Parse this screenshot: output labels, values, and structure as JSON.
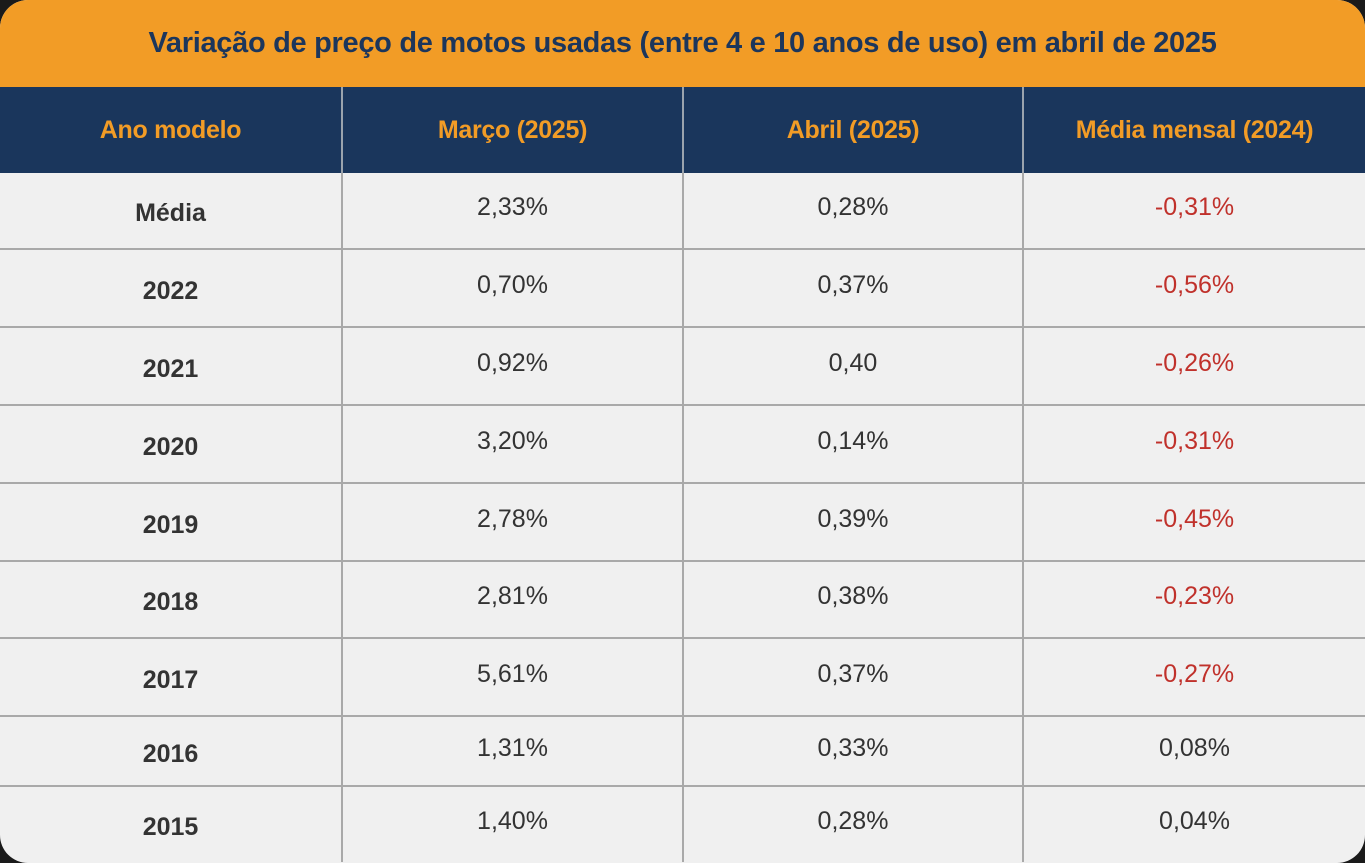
{
  "chart_data": {
    "type": "table",
    "title": "Variação de preço de motos usadas (entre 4 e 10 anos de uso) em abril de 2025",
    "columns": [
      "Ano modelo",
      "Março (2025)",
      "Abril (2025)",
      "Média mensal (2024)"
    ],
    "rows": [
      {
        "ano": "Média",
        "marco": "2,33%",
        "abril": "0,28%",
        "media": "-0,31%",
        "negative": true
      },
      {
        "ano": "2022",
        "marco": "0,70%",
        "abril": "0,37%",
        "media": "-0,56%",
        "negative": true
      },
      {
        "ano": "2021",
        "marco": "0,92%",
        "abril": "0,40",
        "media": "-0,26%",
        "negative": true
      },
      {
        "ano": "2020",
        "marco": "3,20%",
        "abril": "0,14%",
        "media": "-0,31%",
        "negative": true
      },
      {
        "ano": "2019",
        "marco": "2,78%",
        "abril": "0,39%",
        "media": "-0,45%",
        "negative": true
      },
      {
        "ano": "2018",
        "marco": "2,81%",
        "abril": "0,38%",
        "media": "-0,23%",
        "negative": true
      },
      {
        "ano": "2017",
        "marco": "5,61%",
        "abril": "0,37%",
        "media": "-0,27%",
        "negative": true
      },
      {
        "ano": "2016",
        "marco": "1,31%",
        "abril": "0,33%",
        "media": "0,08%",
        "negative": false
      },
      {
        "ano": "2015",
        "marco": "1,40%",
        "abril": "0,28%",
        "media": "0,04%",
        "negative": false
      }
    ]
  },
  "colors": {
    "title_background": "#f29c26",
    "title_text": "#1c365c",
    "header_background": "#1a365c",
    "header_text": "#f29c26",
    "negative_text": "#c0312b",
    "body_background": "#f0f0f0"
  }
}
